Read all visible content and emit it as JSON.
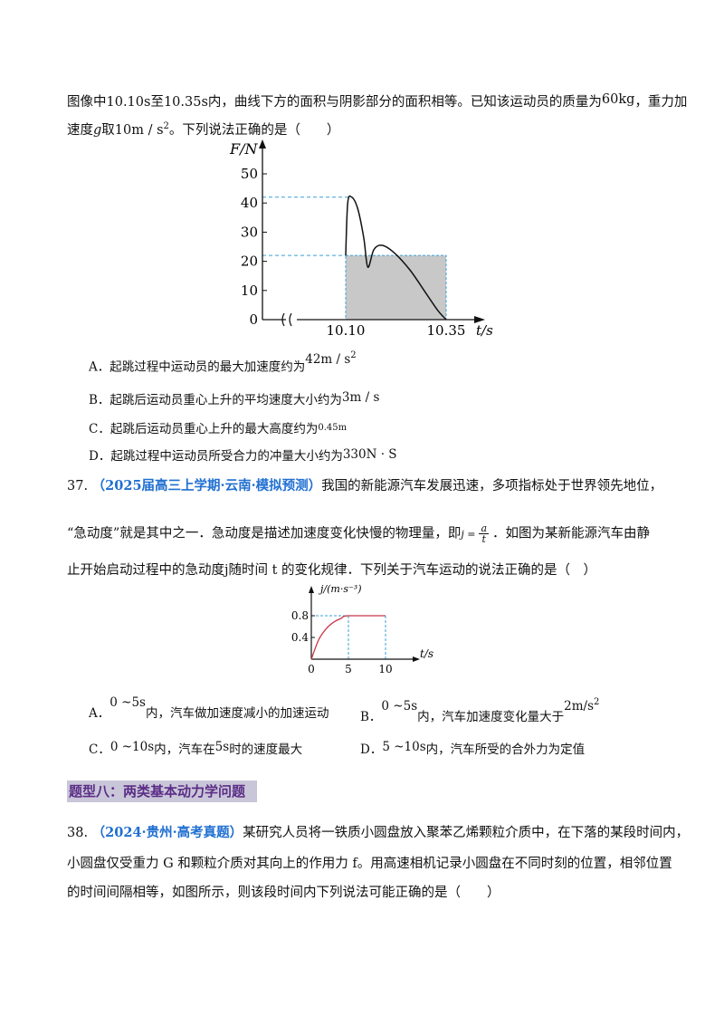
{
  "q36": {
    "intro_line1": "图像中10.10s至10.35s内，曲线下方的面积与阴影部分的面积相等。已知该运动员的质量为",
    "mass": "60kg",
    "intro_line1_tail": "，重力加",
    "intro_line2_a": "速度",
    "g_symbol": "g",
    "intro_line2_b": "取10m / s",
    "intro_line2_exp": "2",
    "intro_line2_c": "。下列说法正确的是（　　）",
    "options": [
      {
        "text": "A．起跳过程中运动员的最大加速度约为",
        "value": "42m / s",
        "exp": "2"
      },
      {
        "text": "B．起跳后运动员重心上升的平均速度大小约为",
        "value": "3m / s",
        "exp": ""
      },
      {
        "text": "C．起跳后运动员重心上升的最大高度约为",
        "value": "0.45m",
        "exp": ""
      },
      {
        "text": "D．起跳过程中运动员所受合力的冲量大小约为",
        "value": "330N · S",
        "exp": ""
      }
    ]
  },
  "q37": {
    "number": "37.",
    "source": "（2025届高三上学期·云南·模拟预测）",
    "line1": "我国的新能源汽车发展迅速，多项指标处于世界领先地位，",
    "line2_a": "“急动度”就是其中之一．急动度是描述加速度变化快慢的物理量，即",
    "formula_lhs": "j =",
    "formula_num": "a",
    "formula_den": "t",
    "line2_b": "．如图为某新能源汽车由静",
    "line3": "止开始启动过程中的急动度j随时间 t 的变化规律．下列关于汽车运动的说法正确的是（　）",
    "options": [
      {
        "label": "A．",
        "range": "0 ~5s",
        "text": "内，汽车做加速度减小的加速运动"
      },
      {
        "label": "B．",
        "range": "0 ~5s",
        "text": "内，汽车加速度变化量大于",
        "value": "2m/s",
        "exp": "2"
      },
      {
        "label": "C．",
        "range": "0 ~10s",
        "text_a": "内，汽车在",
        "mid": "5s",
        "text_b": "时的速度最大"
      },
      {
        "label": "D．",
        "range": "5 ~10s",
        "text": "内，汽车所受的合外力为定值"
      }
    ]
  },
  "section": {
    "title": "题型八：两类基本动力学问题"
  },
  "q38": {
    "number": "38.",
    "source": "（2024·贵州·高考真题）",
    "line1": "某研究人员将一铁质小圆盘放入聚苯乙烯颗粒介质中，在下落的某段时间内，",
    "line2": "小圆盘仅受重力 G 和颗粒介质对其向上的作用力 f。用高速相机记录小圆盘在不同时刻的位置，相邻位置",
    "line3": "的时间间隔相等，如图所示，则该段时间内下列说法可能正确的是（　　）"
  },
  "chart_data": [
    {
      "type": "line",
      "ylabel": "F/N",
      "xlabel": "t/s",
      "yticks": [
        "0",
        "10",
        "20",
        "30",
        "40",
        "50"
      ],
      "xticks": [
        "10.10",
        "10.35"
      ],
      "ylim": [
        0,
        50
      ],
      "xlim": [
        10.1,
        10.35
      ],
      "axis_break": true,
      "curve": {
        "x": [
          10.1,
          10.105,
          10.115,
          10.13,
          10.145,
          10.155,
          10.17,
          10.19,
          10.22,
          10.26,
          10.3,
          10.33,
          10.35
        ],
        "y": [
          22,
          40,
          42,
          38,
          28,
          18,
          24,
          25.5,
          23,
          17,
          9,
          3,
          0
        ]
      },
      "peak_value": 42,
      "shaded_rect": {
        "x0": 10.1,
        "x1": 10.35,
        "y": 22
      },
      "dashed_guides": [
        42,
        22
      ]
    },
    {
      "type": "line",
      "ylabel": "j/(m·s⁻³)",
      "xlabel": "t/s",
      "yticks": [
        "0.4",
        "0.8"
      ],
      "xticks": [
        "0",
        "5",
        "10"
      ],
      "ylim": [
        0,
        0.8
      ],
      "xlim": [
        0,
        10
      ],
      "series": [
        {
          "x": [
            0,
            1,
            2,
            3,
            4,
            5,
            10
          ],
          "y": [
            0,
            0.36,
            0.56,
            0.68,
            0.75,
            0.8,
            0.8
          ]
        }
      ],
      "colors": {
        "curve": "#c8364a",
        "guide": "#3aa0d8"
      }
    }
  ],
  "colors": {
    "highlight": "#1f6fd1",
    "section_bg": "#c9c6d9",
    "section_text": "#5b2d86",
    "dash": "#3aa0d8",
    "shade": "#c8c8c8"
  }
}
